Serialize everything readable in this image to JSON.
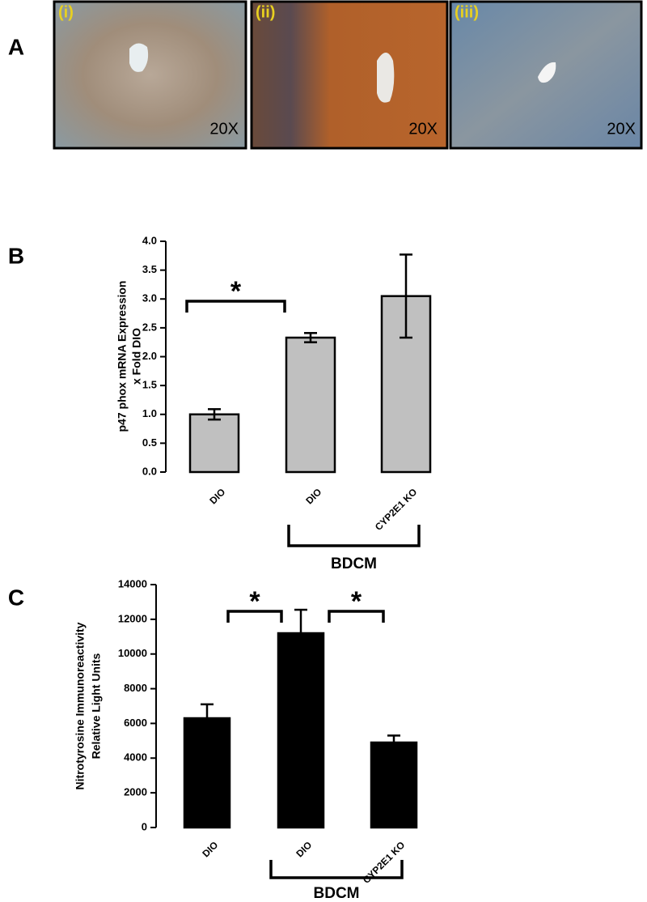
{
  "panel_a": {
    "label": "A",
    "images": [
      {
        "label": "(i)",
        "magnification": "20X"
      },
      {
        "label": "(ii)",
        "magnification": "20X"
      },
      {
        "label": "(iii)",
        "magnification": "20X"
      }
    ]
  },
  "chart_data": [
    {
      "type": "bar",
      "panel_label": "B",
      "y_label": [
        "p47 phox mRNA Expression",
        "x Fold DIO"
      ],
      "categories": [
        "DIO",
        "DIO",
        "CYP2E1 KO"
      ],
      "values": [
        1.0,
        2.33,
        3.05
      ],
      "errors": [
        0.09,
        0.08,
        0.72
      ],
      "color": "#c0c0c0",
      "ylim": [
        0,
        4
      ],
      "yticks": [
        {
          "value": 0,
          "label": "0.0"
        },
        {
          "value": 0.5,
          "label": "0.5"
        },
        {
          "value": 1,
          "label": "1.0"
        },
        {
          "value": 1.5,
          "label": "1.5"
        },
        {
          "value": 2,
          "label": "2.0"
        },
        {
          "value": 2.5,
          "label": "2.5"
        },
        {
          "value": 3,
          "label": "3.0"
        },
        {
          "value": 3.5,
          "label": "3.5"
        },
        {
          "value": 4,
          "label": "4.0"
        }
      ],
      "grid": false,
      "group": {
        "label": "BDCM",
        "categories": [
          1,
          2
        ]
      },
      "significance": [
        {
          "label": "*",
          "from": 0,
          "to": 1
        }
      ]
    },
    {
      "type": "bar",
      "panel_label": "C",
      "y_label": [
        "Nitrotyrosine Immunoreactivity",
        "Relative Light Units"
      ],
      "categories": [
        "DIO",
        "DIO",
        "CYP2E1 KO"
      ],
      "values": [
        6300,
        11200,
        4900
      ],
      "errors": [
        800,
        1350,
        400
      ],
      "color": "#000000",
      "ylim": [
        0,
        14000
      ],
      "yticks": [
        0,
        2000,
        4000,
        6000,
        8000,
        10000,
        12000,
        14000
      ],
      "grid": false,
      "group": {
        "label": "BDCM",
        "categories": [
          1,
          2
        ]
      },
      "significance": [
        {
          "label": "*",
          "from": 0,
          "to": 1
        },
        {
          "label": "*",
          "from": 1,
          "to": 2
        }
      ]
    }
  ]
}
